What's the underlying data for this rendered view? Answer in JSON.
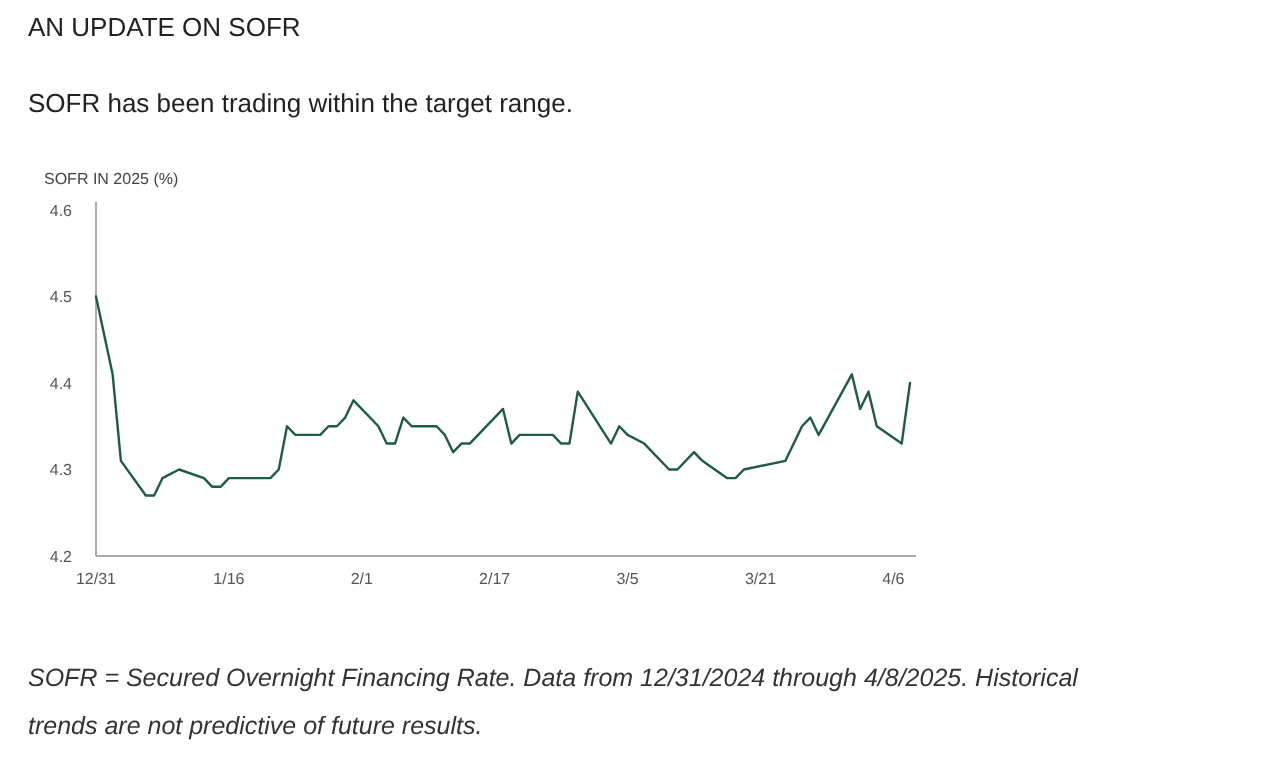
{
  "chart_data": {
    "type": "line",
    "title": "AN UPDATE ON SOFR",
    "subtitle": "SOFR has been trading within the target range.",
    "ylabel": "SOFR IN 2025 (%)",
    "annotations": [
      "SOFR = Secured Overnight Financing Rate. Data from 12/31/2024 through 4/8/2025. Historical trends are not predictive of future results."
    ],
    "x": [
      "2024-12-31",
      "2025-01-02",
      "2025-01-03",
      "2025-01-06",
      "2025-01-07",
      "2025-01-08",
      "2025-01-10",
      "2025-01-13",
      "2025-01-14",
      "2025-01-15",
      "2025-01-16",
      "2025-01-21",
      "2025-01-22",
      "2025-01-23",
      "2025-01-24",
      "2025-01-27",
      "2025-01-28",
      "2025-01-29",
      "2025-01-30",
      "2025-01-31",
      "2025-02-03",
      "2025-02-04",
      "2025-02-05",
      "2025-02-06",
      "2025-02-07",
      "2025-02-10",
      "2025-02-11",
      "2025-02-12",
      "2025-02-13",
      "2025-02-14",
      "2025-02-18",
      "2025-02-19",
      "2025-02-20",
      "2025-02-21",
      "2025-02-24",
      "2025-02-25",
      "2025-02-26",
      "2025-02-27",
      "2025-03-03",
      "2025-03-04",
      "2025-03-05",
      "2025-03-07",
      "2025-03-10",
      "2025-03-11",
      "2025-03-13",
      "2025-03-14",
      "2025-03-17",
      "2025-03-18",
      "2025-03-19",
      "2025-03-24",
      "2025-03-26",
      "2025-03-27",
      "2025-03-28",
      "2025-04-01",
      "2025-04-02",
      "2025-04-03",
      "2025-04-04",
      "2025-04-07",
      "2025-04-08"
    ],
    "series": [
      {
        "color": "#1e5c46",
        "values": [
          4.5,
          4.41,
          4.31,
          4.27,
          4.27,
          4.29,
          4.3,
          4.29,
          4.28,
          4.28,
          4.29,
          4.29,
          4.3,
          4.35,
          4.34,
          4.34,
          4.35,
          4.35,
          4.36,
          4.38,
          4.35,
          4.33,
          4.33,
          4.36,
          4.35,
          4.35,
          4.34,
          4.32,
          4.33,
          4.33,
          4.37,
          4.33,
          4.34,
          4.34,
          4.34,
          4.33,
          4.33,
          4.39,
          4.33,
          4.35,
          4.34,
          4.33,
          4.3,
          4.3,
          4.32,
          4.31,
          4.29,
          4.29,
          4.3,
          4.31,
          4.35,
          4.36,
          4.34,
          4.41,
          4.37,
          4.39,
          4.35,
          4.33,
          4.4
        ]
      }
    ],
    "xlim": [
      "2024-12-31",
      "2025-04-08"
    ],
    "xticks": [
      {
        "value": "2024-12-31",
        "label": "12/31"
      },
      {
        "value": "2025-01-16",
        "label": "1/16"
      },
      {
        "value": "2025-02-01",
        "label": "2/1"
      },
      {
        "value": "2025-02-17",
        "label": "2/17"
      },
      {
        "value": "2025-03-05",
        "label": "3/5"
      },
      {
        "value": "2025-03-21",
        "label": "3/21"
      },
      {
        "value": "2025-04-06",
        "label": "4/6"
      }
    ],
    "ylim": [
      4.2,
      4.6
    ],
    "yticks": [
      4.2,
      4.3,
      4.4,
      4.5,
      4.6
    ],
    "grid": false,
    "marker": "none",
    "line_style": "solid"
  }
}
